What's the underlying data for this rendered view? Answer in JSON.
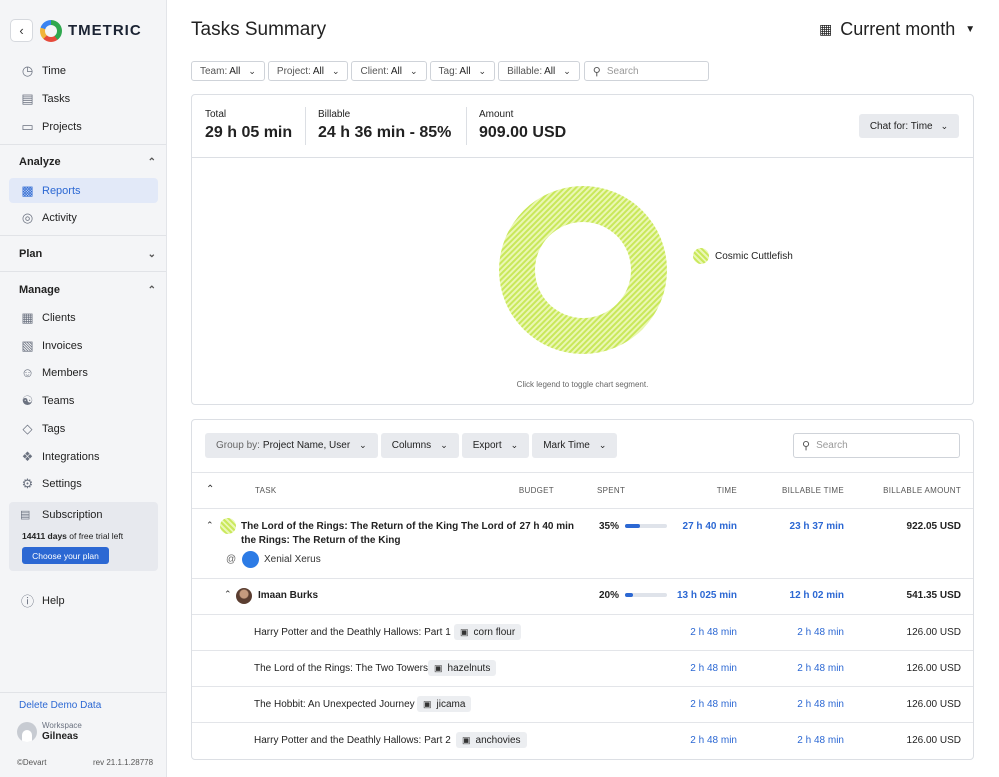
{
  "app": {
    "name": "TMETRIC"
  },
  "sidebar": {
    "top_items": [
      {
        "label": "Time",
        "icon": "clock-icon"
      },
      {
        "label": "Tasks",
        "icon": "clipboard-icon"
      },
      {
        "label": "Projects",
        "icon": "folder-icon"
      }
    ],
    "analyze": {
      "title": "Analyze",
      "items": [
        {
          "label": "Reports",
          "icon": "bar-chart-icon"
        },
        {
          "label": "Activity",
          "icon": "activity-icon"
        }
      ]
    },
    "plan": {
      "title": "Plan"
    },
    "manage": {
      "title": "Manage",
      "items": [
        {
          "label": "Clients",
          "icon": "building-icon"
        },
        {
          "label": "Invoices",
          "icon": "invoice-icon"
        },
        {
          "label": "Members",
          "icon": "user-icon"
        },
        {
          "label": "Teams",
          "icon": "team-icon"
        },
        {
          "label": "Tags",
          "icon": "tag-icon"
        },
        {
          "label": "Integrations",
          "icon": "puzzle-icon"
        },
        {
          "label": "Settings",
          "icon": "gear-icon"
        }
      ]
    },
    "subscription": {
      "label": "Subscription",
      "trial_days": "14411 days",
      "trial_text": "of free trial left",
      "button": "Choose your plan"
    },
    "help": "Help",
    "delete_demo": "Delete Demo Data",
    "workspace": {
      "label": "Workspace",
      "name": "Gilneas"
    },
    "copyright": "©Devart",
    "revision": "rev 21.1.1.28778"
  },
  "header": {
    "title": "Tasks Summary",
    "period": "Current month"
  },
  "filters": [
    {
      "label": "Team:",
      "value": "All"
    },
    {
      "label": "Project:",
      "value": "All"
    },
    {
      "label": "Client:",
      "value": "All"
    },
    {
      "label": "Tag:",
      "value": "All"
    },
    {
      "label": "Billable:",
      "value": "All"
    }
  ],
  "filter_search_placeholder": "Search",
  "summary": {
    "total_label": "Total",
    "total_value": "29 h 05 min",
    "billable_label": "Billable",
    "billable_value": "24 h 36 min - ",
    "billable_pct": "85%",
    "amount_label": "Amount",
    "amount_value": "909.00 USD",
    "chat_for": "Chat for: Time"
  },
  "chart_data": {
    "type": "pie",
    "categories": [
      "Cosmic Cuttlefish"
    ],
    "values": [
      100
    ],
    "colors": [
      "#c9e85a"
    ],
    "legend_position": "right",
    "annotation": "Click legend to toggle chart segment."
  },
  "toolbar": {
    "group_by_label": "Group by:",
    "group_by_value": "Project Name, User",
    "columns": "Columns",
    "export": "Export",
    "mark_time": "Mark Time",
    "search_placeholder": "Search"
  },
  "table": {
    "headers": {
      "task": "TASK",
      "budget": "BUDGET",
      "spent": "SPENT",
      "time": "TIME",
      "billable_time": "BILLABLE TIME",
      "billable_amount": "BILLABLE AMOUNT"
    },
    "project": {
      "title": "The Lord of the Rings: The Return of the King The Lord of the Rings: The Return of the King",
      "budget": "27 h 40 min",
      "spent": "35%",
      "spent_fraction": 0.35,
      "time": "27 h 40 min",
      "billable_time": "23 h 37 min",
      "billable_amount": "922.05 USD",
      "at": "@",
      "user": "Xenial Xerus"
    },
    "person": {
      "name": "Imaan Burks",
      "spent": "20%",
      "spent_fraction": 0.2,
      "time": "13 h 025 min",
      "billable_time": "12 h 02 min",
      "billable_amount": "541.35 USD"
    },
    "tasks": [
      {
        "name": "Harry Potter and the Deathly Hallows: Part 1",
        "tag": "corn flour",
        "time": "2 h 48 min",
        "billable_time": "2 h 48 min",
        "amount": "126.00 USD"
      },
      {
        "name": "The Lord of the Rings: The Two Towers",
        "tag": "hazelnuts",
        "time": "2 h 48 min",
        "billable_time": "2 h 48 min",
        "amount": "126.00 USD"
      },
      {
        "name": "The Hobbit: An Unexpected Journey",
        "tag": "jicama",
        "time": "2 h 48 min",
        "billable_time": "2 h 48 min",
        "amount": "126.00 USD"
      },
      {
        "name": "Harry Potter and the Deathly Hallows: Part 2",
        "tag": "anchovies",
        "time": "2 h 48 min",
        "billable_time": "2 h 48 min",
        "amount": "126.00 USD"
      }
    ]
  }
}
